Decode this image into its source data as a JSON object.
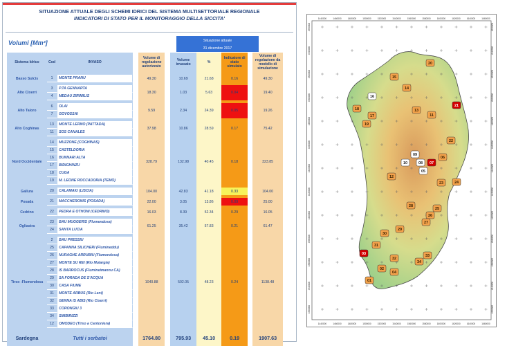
{
  "header": {
    "title1": "SITUAZIONE ATTUALE DEGLI SCHEMI IDRICI DEL SISTEMA MULTISETTORIALE REGIONALE",
    "title2": "INDICATORI DI STATO PER IL MONITORAGGIO DELLA SICCITA'"
  },
  "units": "Volumi [Mm³]",
  "date_box": {
    "line1": "Situazione attuale",
    "line2": "31 dicembre 2017"
  },
  "columns": {
    "sistema": "Sistema Idrico",
    "cod": "Cod",
    "invaso": "INVASO",
    "vol_reg_aut": "Volume di regolazione autorizzato",
    "vol_invasato": "Volume invasato",
    "pct": "%",
    "indicatore": "Indicatore di stato simulato",
    "vol_reg_mod": "Volume di regolazione da modello di simulazione"
  },
  "systems": [
    {
      "name": "Basso Sulcis",
      "reg_aut": "49.30",
      "invasato": "10.69",
      "pct": "21.68",
      "ind": "0.16",
      "ind_color": "#f59a17",
      "mod": "49.30",
      "rows": [
        {
          "cod": "1",
          "name": "MONTE PRANU"
        }
      ]
    },
    {
      "name": "Alto Cixerri",
      "reg_aut": "18.30",
      "invasato": "1.03",
      "pct": "5.63",
      "ind": "0.04",
      "ind_color": "#ee1111",
      "mod": "19.40",
      "rows": [
        {
          "cod": "3",
          "name": "P.TA GENNARTA"
        },
        {
          "cod": "4",
          "name": "MEDAU ZIRIMILIS"
        }
      ]
    },
    {
      "name": "Alto Taloro",
      "reg_aut": "9.59",
      "invasato": "2.34",
      "pct": "24.39",
      "ind": "0.05",
      "ind_color": "#ee1111",
      "mod": "19.26",
      "rows": [
        {
          "cod": "6",
          "name": "OLAI"
        },
        {
          "cod": "7",
          "name": "GOVOSSAI"
        }
      ]
    },
    {
      "name": "Alto Coghinas",
      "reg_aut": "37.98",
      "invasato": "10.86",
      "pct": "28.59",
      "ind": "0.17",
      "ind_color": "#f59a17",
      "mod": "75.42",
      "rows": [
        {
          "cod": "13",
          "name": "MONTE LERNO (PATTADA)"
        },
        {
          "cod": "11",
          "name": "SOS CANALES"
        }
      ]
    },
    {
      "name": "Nord Occidentale",
      "reg_aut": "328.79",
      "invasato": "132.98",
      "pct": "40.45",
      "ind": "0.18",
      "ind_color": "#f59a17",
      "mod": "323.85",
      "rows": [
        {
          "cod": "14",
          "name": "MUZZONE (COGHINAS)"
        },
        {
          "cod": "15",
          "name": "CASTELDORIA"
        },
        {
          "cod": "16",
          "name": "BUNNARI ALTA"
        },
        {
          "cod": "17",
          "name": "BIDIGHINZU"
        },
        {
          "cod": "18",
          "name": "CUGA"
        },
        {
          "cod": "19",
          "name": "M. LEONE ROCCADORIA (TEMO)"
        }
      ]
    },
    {
      "name": "Gallura",
      "reg_aut": "104.00",
      "invasato": "42.83",
      "pct": "41.18",
      "ind": "0.33",
      "ind_color": "#f7f35b",
      "mod": "104.00",
      "rows": [
        {
          "cod": "20",
          "name": "CALAMAIU (LISCIA)"
        }
      ]
    },
    {
      "name": "Posada",
      "reg_aut": "22.00",
      "invasato": "3.05",
      "pct": "13.86",
      "ind": "0.09",
      "ind_color": "#ee1111",
      "mod": "25.00",
      "rows": [
        {
          "cod": "21",
          "name": "MACCHERONIS (POSADA)"
        }
      ]
    },
    {
      "name": "Cedrino",
      "reg_aut": "16.03",
      "invasato": "8.39",
      "pct": "52.34",
      "ind": "0.29",
      "ind_color": "#f59a17",
      "mod": "16.05",
      "rows": [
        {
          "cod": "22",
          "name": "PEDRA E OTHONI (CEDRINO)"
        }
      ]
    },
    {
      "name": "Ogliastra",
      "reg_aut": "61.25",
      "invasato": "35.42",
      "pct": "57.83",
      "ind": "0.21",
      "ind_color": "#f59a17",
      "mod": "61.47",
      "rows": [
        {
          "cod": "23",
          "name": "BAU MUGGERIS (Flumendosa)"
        },
        {
          "cod": "24",
          "name": "SANTA LUCIA"
        }
      ]
    },
    {
      "name": "Tirso -Flumendosa",
      "reg_aut": "1040.88",
      "invasato": "502.05",
      "pct": "48.23",
      "ind": "0.24",
      "ind_color": "#f59a17",
      "mod": "1138.48",
      "rows": [
        {
          "cod": "2",
          "name": "BAU PRESSIU"
        },
        {
          "cod": "25",
          "name": "CAPANNA SILICHERI (Flumineddu)"
        },
        {
          "cod": "26",
          "name": "NURAGHE ARRUBIU (Flumendosa)"
        },
        {
          "cod": "27",
          "name": "MONTE SU REI (Rio Mulargia)"
        },
        {
          "cod": "28",
          "name": "IS BARROCUS (Flumineimannu CA)"
        },
        {
          "cod": "29",
          "name": "SA FORADA DE S'ACQUA"
        },
        {
          "cod": "30",
          "name": "CASA FIUME"
        },
        {
          "cod": "31",
          "name": "MONTE ARBUS (Rio Leni)"
        },
        {
          "cod": "32",
          "name": "GENNA IS ABIS (Rio Cixerri)"
        },
        {
          "cod": "33",
          "name": "CORONGIU 3"
        },
        {
          "cod": "34",
          "name": "SIMBIRIZZI"
        },
        {
          "cod": "12",
          "name": "OMODEO (Tirso a Cantoniera)"
        }
      ]
    }
  ],
  "total": {
    "name": "Sardegna",
    "label": "Tutti i serbatoi",
    "reg_aut": "1764.80",
    "invasato": "795.93",
    "pct": "45.10",
    "ind": "0.19",
    "mod": "1907.63"
  },
  "map": {
    "lon_labels": [
      "1440000",
      "1460000",
      "1480000",
      "1500000",
      "1520000",
      "1540000",
      "1560000",
      "1580000",
      "1600000",
      "1620000",
      "1640000",
      "1660000"
    ],
    "lat_labels": [
      "4550000",
      "4540000",
      "4520000",
      "4500000",
      "4480000",
      "4460000",
      "4440000",
      "4420000",
      "4400000",
      "4380000",
      "4360000",
      "4340000",
      "4320000"
    ],
    "markers": [
      {
        "code": "20",
        "color": "#f3a24b"
      },
      {
        "code": "15",
        "color": "#f3a24b"
      },
      {
        "code": "14",
        "color": "#f3a24b"
      },
      {
        "code": "16",
        "color": "#ffffff"
      },
      {
        "code": "13",
        "color": "#f3a24b"
      },
      {
        "code": "11",
        "color": "#f3a24b"
      },
      {
        "code": "21",
        "color": "#d40000"
      },
      {
        "code": "18",
        "color": "#f3a24b"
      },
      {
        "code": "17",
        "color": "#f3a24b"
      },
      {
        "code": "19",
        "color": "#f3a24b"
      },
      {
        "code": "22",
        "color": "#f3a24b"
      },
      {
        "code": "09",
        "color": "#ffffff"
      },
      {
        "code": "10",
        "color": "#ffffff"
      },
      {
        "code": "08",
        "color": "#ffffff"
      },
      {
        "code": "07",
        "color": "#d40000"
      },
      {
        "code": "06",
        "color": "#f3a24b"
      },
      {
        "code": "05",
        "color": "#ffffff"
      },
      {
        "code": "12",
        "color": "#f3a24b"
      },
      {
        "code": "23",
        "color": "#f3a24b"
      },
      {
        "code": "24",
        "color": "#f3a24b"
      },
      {
        "code": "28",
        "color": "#f3a24b"
      },
      {
        "code": "25",
        "color": "#f3a24b"
      },
      {
        "code": "26",
        "color": "#f3a24b"
      },
      {
        "code": "27",
        "color": "#f3a24b"
      },
      {
        "code": "29",
        "color": "#f3a24b"
      },
      {
        "code": "30",
        "color": "#f3a24b"
      },
      {
        "code": "31",
        "color": "#f3a24b"
      },
      {
        "code": "03",
        "color": "#d40000"
      },
      {
        "code": "32",
        "color": "#f3a24b"
      },
      {
        "code": "33",
        "color": "#f3a24b"
      },
      {
        "code": "02",
        "color": "#f3a24b"
      },
      {
        "code": "04",
        "color": "#f3a24b"
      },
      {
        "code": "34",
        "color": "#f3a24b"
      },
      {
        "code": "01",
        "color": "#f3a24b"
      }
    ]
  }
}
